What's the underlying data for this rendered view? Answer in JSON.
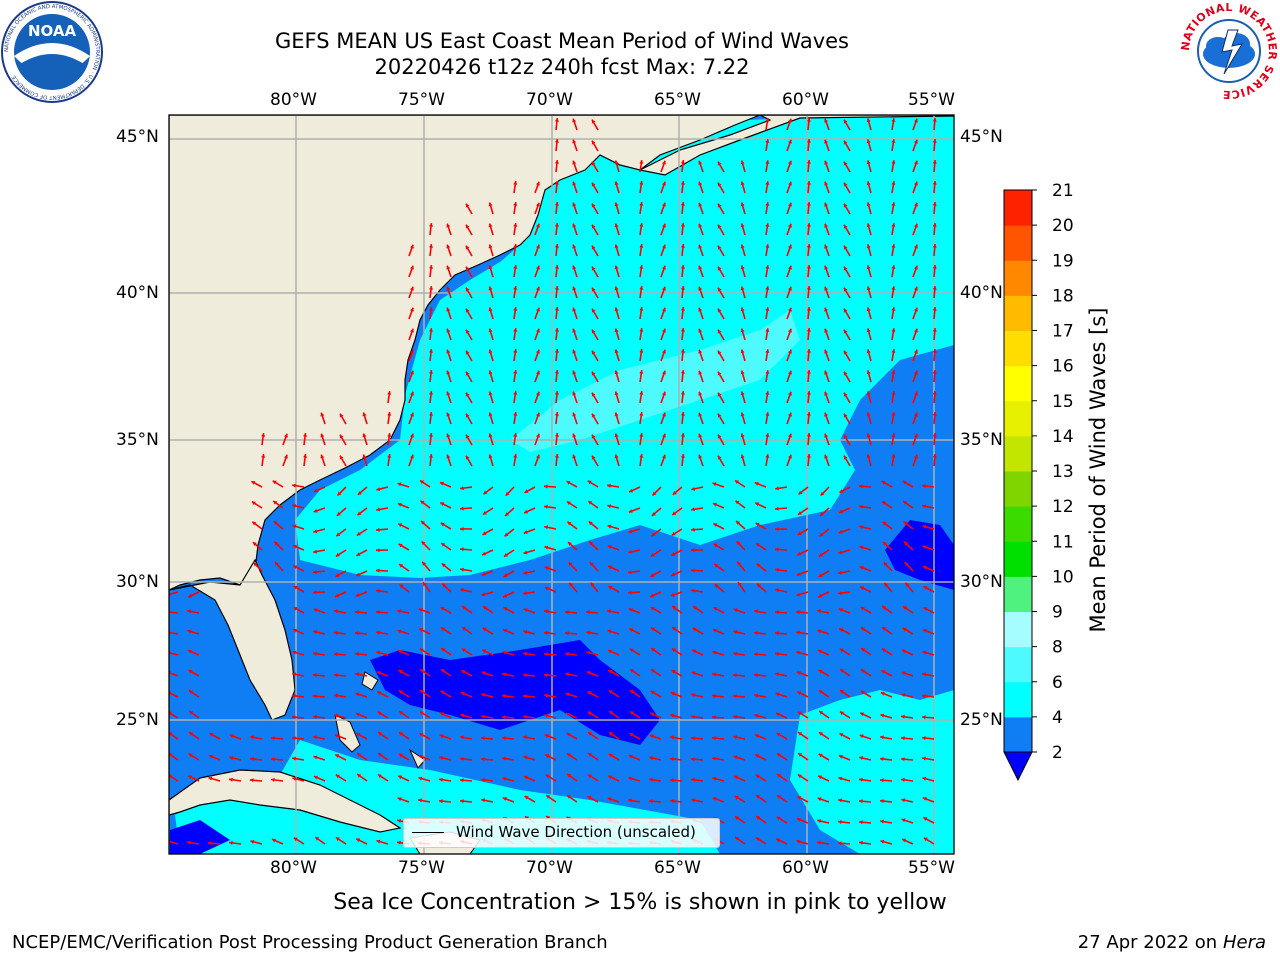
{
  "title": {
    "line1": "GEFS MEAN US East Coast Mean Period of Wind Waves",
    "line2": "20220426 t12z 240h fcst   Max: 7.22"
  },
  "logos": {
    "left": {
      "text": "NOAA",
      "ring": "NATIONAL OCEANIC AND ATMOSPHERIC ADMINISTRATION · U.S. DEPARTMENT OF COMMERCE"
    },
    "right": {
      "ring": "NATIONAL WEATHER SERVICE"
    }
  },
  "map": {
    "lon_labels": [
      "80°W",
      "75°W",
      "70°W",
      "65°W",
      "60°W",
      "55°W"
    ],
    "lat_labels": [
      "45°N",
      "40°N",
      "35°N",
      "30°N",
      "25°N"
    ],
    "lon_values": [
      -80,
      -75,
      -70,
      -65,
      -60,
      -55
    ],
    "lat_values": [
      45,
      40,
      35,
      30,
      25
    ],
    "extent": {
      "lon_min": -85,
      "lon_max": -54.3,
      "lat_min": 20.5,
      "lat_max": 46.2
    },
    "legend_label": "Wind Wave Direction (unscaled)",
    "colors": {
      "land": "#efecdc",
      "coast": "#000000",
      "arrow": "#ff0000",
      "grid": "#b0b0b0"
    }
  },
  "colorbar": {
    "label": "Mean Period of Wind Waves [s]",
    "ticks": [
      "2",
      "4",
      "6",
      "8",
      "9",
      "10",
      "11",
      "12",
      "13",
      "14",
      "15",
      "16",
      "17",
      "18",
      "19",
      "20",
      "21"
    ],
    "colors": [
      "#0f7ef5",
      "#00ffff",
      "#4dfbff",
      "#a6fdff",
      "#4ff27f",
      "#00e000",
      "#3cdb00",
      "#80d400",
      "#c2e600",
      "#e6f000",
      "#ffff00",
      "#ffdd00",
      "#ffbb00",
      "#ff8800",
      "#ff5500",
      "#ff2200"
    ],
    "extend_color": "#0000ff"
  },
  "footer": {
    "sea_ice": "Sea Ice Concentration > 15% is shown in pink to yellow",
    "branch": "NCEP/EMC/Verification Post Processing Product Generation Branch",
    "date": "27 Apr 2022 on",
    "machine": "Hera"
  }
}
